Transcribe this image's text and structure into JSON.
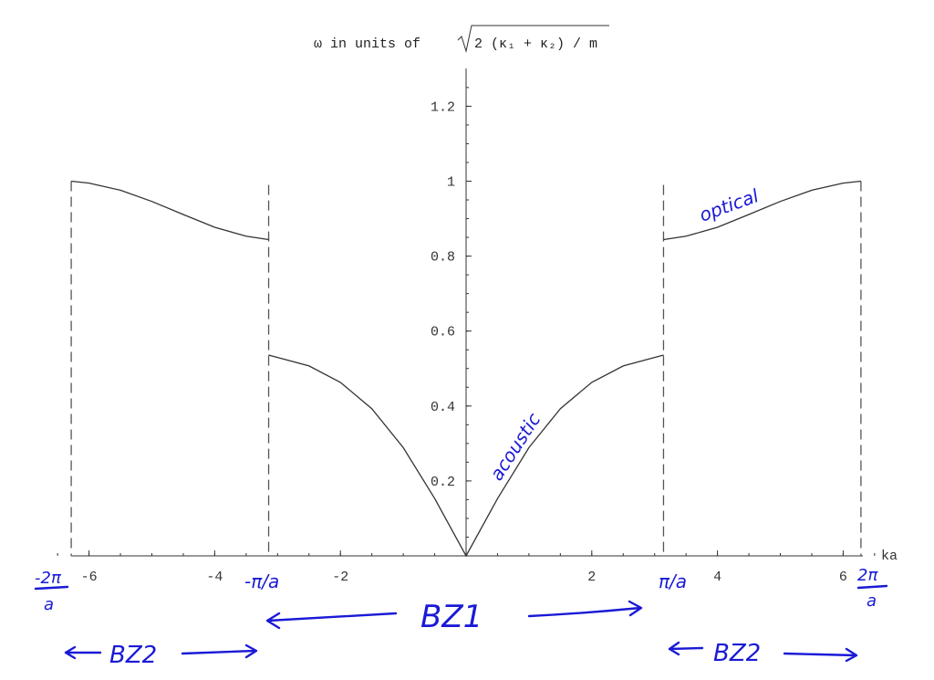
{
  "chart_data": {
    "type": "line",
    "title": "ω in units of √2 (κ₁ + κ₂) / m",
    "title_prefix": "ω in units of ",
    "title_radicand": "2 (κ₁ + κ₂) / m",
    "xlabel": "ka",
    "ylabel": "",
    "xlim": [
      -6.6,
      6.6
    ],
    "ylim": [
      0,
      1.3
    ],
    "x_ticks": [
      -6,
      -4,
      -2,
      2,
      4,
      6
    ],
    "y_ticks": [
      0.2,
      0.4,
      0.6,
      0.8,
      1,
      1.2
    ],
    "series": [
      {
        "name": "acoustic",
        "x": [
          -3.1416,
          -2.5,
          -2.0,
          -1.5,
          -1.0,
          -0.5,
          0,
          0.5,
          1.0,
          1.5,
          2.0,
          2.5,
          3.1416
        ],
        "y": [
          0.536,
          0.507,
          0.463,
          0.393,
          0.289,
          0.153,
          0,
          0.153,
          0.289,
          0.393,
          0.463,
          0.507,
          0.536
        ]
      },
      {
        "name": "optical",
        "x": [
          3.1416,
          3.5,
          4.0,
          4.5,
          5.0,
          5.5,
          6.0,
          6.2832
        ],
        "y": [
          0.844,
          0.853,
          0.877,
          0.911,
          0.946,
          0.976,
          0.995,
          1.0
        ]
      },
      {
        "name": "",
        "x": [
          -6.2832,
          -6.0,
          -5.5,
          -5.0,
          -4.5,
          -4.0,
          -3.5,
          -3.1416
        ],
        "y": [
          1.0,
          0.995,
          0.976,
          0.946,
          0.911,
          0.877,
          0.853,
          0.844
        ]
      }
    ],
    "vertical_lines": [
      -6.2832,
      -3.1416,
      3.1416,
      6.2832
    ],
    "annotations": {
      "left_2pi": {
        "num": "-2π",
        "den": "a"
      },
      "left_pi": "-π/a",
      "right_pi": "π/a",
      "right_2pi": {
        "num": "2π",
        "den": "a"
      },
      "bz1": "BZ1",
      "bz2_left": "BZ2",
      "bz2_right": "BZ2",
      "acoustic": "acoustic",
      "optical": "optical"
    },
    "grid": false
  }
}
